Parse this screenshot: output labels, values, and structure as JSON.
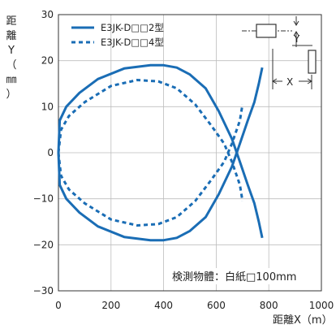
{
  "chart_data": {
    "type": "line",
    "ylabel": "距離Y（mm）",
    "ylabel_chars": [
      "距",
      "離",
      "Y",
      "（",
      "㎜",
      "）"
    ],
    "xlabel": "距離X（m）",
    "xlim": [
      0,
      1000
    ],
    "ylim": [
      -30,
      30
    ],
    "xticks": [
      0,
      200,
      400,
      600,
      800,
      1000
    ],
    "yticks": [
      -30,
      -20,
      -10,
      0,
      10,
      20,
      30
    ],
    "grid": true,
    "legend_position": "top-left",
    "annotation": "検測物體：白紙□100mm",
    "inset_labels": {
      "x": "X",
      "y": "Y"
    },
    "series": [
      {
        "name": "E3JK-D□□2型",
        "style": "solid",
        "color": "#1a6db5",
        "points": [
          [
            0,
            0
          ],
          [
            5,
            7
          ],
          [
            30,
            10
          ],
          [
            80,
            13
          ],
          [
            150,
            16
          ],
          [
            250,
            18.3
          ],
          [
            350,
            19
          ],
          [
            400,
            19
          ],
          [
            450,
            18.5
          ],
          [
            500,
            17
          ],
          [
            560,
            14
          ],
          [
            610,
            9
          ],
          [
            660,
            3
          ],
          [
            690,
            -2
          ],
          [
            720,
            -7
          ],
          [
            745,
            -11
          ],
          [
            762,
            -15
          ],
          [
            775,
            -18.5
          ]
        ],
        "mirror_points": [
          [
            0,
            0
          ],
          [
            5,
            -7
          ],
          [
            30,
            -10
          ],
          [
            80,
            -13
          ],
          [
            150,
            -16
          ],
          [
            250,
            -18.3
          ],
          [
            350,
            -19
          ],
          [
            400,
            -19
          ],
          [
            450,
            -18.5
          ],
          [
            500,
            -17
          ],
          [
            560,
            -14
          ],
          [
            610,
            -9
          ],
          [
            660,
            -3
          ],
          [
            690,
            2
          ],
          [
            720,
            7
          ],
          [
            745,
            11
          ],
          [
            762,
            15
          ],
          [
            775,
            18.5
          ]
        ]
      },
      {
        "name": "E3JK-D□□4型",
        "style": "dashed",
        "color": "#1a6db5",
        "points": [
          [
            0,
            0
          ],
          [
            10,
            5
          ],
          [
            40,
            8
          ],
          [
            100,
            11
          ],
          [
            200,
            14.5
          ],
          [
            300,
            15.8
          ],
          [
            380,
            15.5
          ],
          [
            450,
            14
          ],
          [
            520,
            10.5
          ],
          [
            580,
            6
          ],
          [
            630,
            2
          ],
          [
            660,
            -2
          ],
          [
            690,
            -7
          ],
          [
            700,
            -10.5
          ]
        ],
        "mirror_points": [
          [
            0,
            0
          ],
          [
            10,
            -5
          ],
          [
            40,
            -8
          ],
          [
            100,
            -11
          ],
          [
            200,
            -14.5
          ],
          [
            300,
            -15.8
          ],
          [
            380,
            -15.5
          ],
          [
            450,
            -14
          ],
          [
            520,
            -10.5
          ],
          [
            580,
            -6
          ],
          [
            630,
            -2
          ],
          [
            660,
            2
          ],
          [
            690,
            7
          ],
          [
            700,
            10.5
          ]
        ]
      }
    ]
  }
}
